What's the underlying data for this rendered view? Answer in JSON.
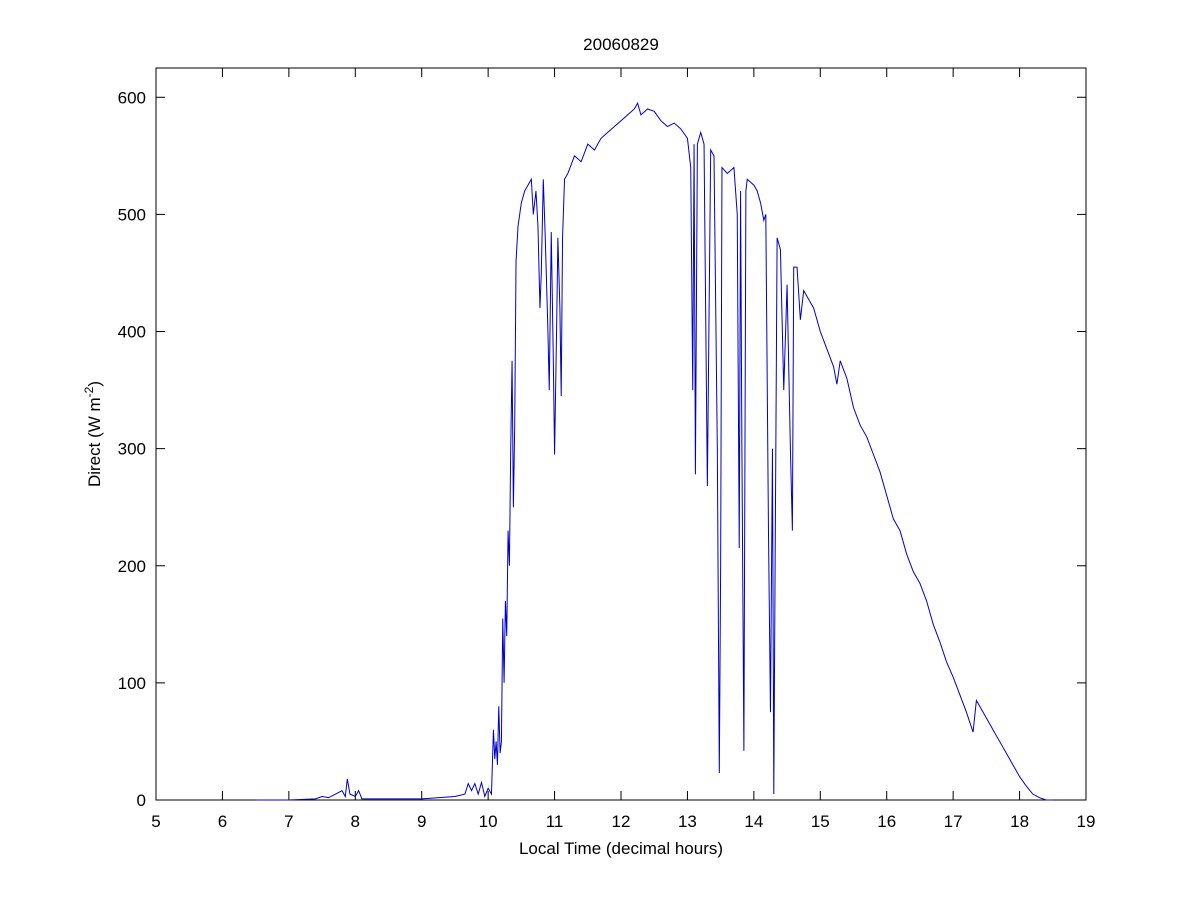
{
  "chart_data": {
    "type": "line",
    "title": "20060829",
    "xlabel": "Local Time (decimal hours)",
    "ylabel": [
      "Direct (W m",
      "-2",
      ")"
    ],
    "x": [
      6.5,
      7,
      7.4,
      7.5,
      7.6,
      7.7,
      7.8,
      7.85,
      7.88,
      7.92,
      8.0,
      8.05,
      8.1,
      8.5,
      9.0,
      9.5,
      9.65,
      9.7,
      9.75,
      9.8,
      9.85,
      9.9,
      9.95,
      10.0,
      10.05,
      10.08,
      10.1,
      10.12,
      10.14,
      10.16,
      10.18,
      10.2,
      10.22,
      10.24,
      10.26,
      10.28,
      10.3,
      10.32,
      10.34,
      10.36,
      10.38,
      10.4,
      10.42,
      10.45,
      10.5,
      10.55,
      10.6,
      10.65,
      10.68,
      10.72,
      10.75,
      10.78,
      10.8,
      10.83,
      10.86,
      10.9,
      10.92,
      10.95,
      10.98,
      11.0,
      11.03,
      11.05,
      11.08,
      11.1,
      11.12,
      11.15,
      11.2,
      11.3,
      11.4,
      11.5,
      11.6,
      11.7,
      11.8,
      11.9,
      12.0,
      12.1,
      12.2,
      12.25,
      12.3,
      12.4,
      12.5,
      12.6,
      12.7,
      12.8,
      12.9,
      13.0,
      13.05,
      13.08,
      13.1,
      13.12,
      13.15,
      13.2,
      13.25,
      13.3,
      13.35,
      13.4,
      13.45,
      13.48,
      13.5,
      13.52,
      13.6,
      13.7,
      13.75,
      13.78,
      13.8,
      13.82,
      13.85,
      13.88,
      13.9,
      14.0,
      14.05,
      14.1,
      14.15,
      14.18,
      14.22,
      14.25,
      14.28,
      14.3,
      14.32,
      14.35,
      14.4,
      14.45,
      14.5,
      14.55,
      14.58,
      14.6,
      14.65,
      14.7,
      14.75,
      14.8,
      14.9,
      15.0,
      15.1,
      15.2,
      15.25,
      15.3,
      15.4,
      15.5,
      15.6,
      15.7,
      15.8,
      15.9,
      16.0,
      16.1,
      16.2,
      16.3,
      16.4,
      16.5,
      16.6,
      16.7,
      16.8,
      16.9,
      17.0,
      17.1,
      17.2,
      17.3,
      17.35,
      17.4,
      17.5,
      17.6,
      17.7,
      17.8,
      17.9,
      18.0,
      18.1,
      18.2,
      18.3,
      18.4,
      18.5
    ],
    "series": [
      {
        "color": "#0000cc",
        "values": [
          0,
          0,
          1,
          3,
          2,
          5,
          8,
          3,
          18,
          5,
          3,
          8,
          1,
          1,
          1,
          3,
          5,
          14,
          8,
          14,
          5,
          15,
          3,
          10,
          5,
          60,
          35,
          50,
          30,
          80,
          40,
          50,
          155,
          100,
          170,
          140,
          230,
          200,
          300,
          375,
          250,
          320,
          460,
          490,
          510,
          520,
          525,
          530,
          500,
          520,
          490,
          420,
          450,
          530,
          480,
          400,
          350,
          485,
          380,
          295,
          400,
          480,
          420,
          345,
          480,
          530,
          535,
          550,
          545,
          560,
          555,
          565,
          570,
          575,
          580,
          585,
          590,
          595,
          585,
          590,
          588,
          580,
          575,
          578,
          573,
          565,
          540,
          350,
          560,
          278,
          560,
          570,
          560,
          268,
          555,
          550,
          300,
          23,
          200,
          540,
          535,
          540,
          500,
          215,
          520,
          300,
          42,
          520,
          530,
          525,
          520,
          510,
          495,
          500,
          230,
          75,
          300,
          5,
          200,
          480,
          470,
          350,
          440,
          300,
          230,
          455,
          455,
          410,
          435,
          430,
          420,
          400,
          385,
          370,
          355,
          375,
          360,
          335,
          320,
          310,
          295,
          280,
          260,
          240,
          230,
          210,
          195,
          185,
          170,
          150,
          135,
          118,
          105,
          90,
          75,
          58,
          85,
          80,
          70,
          60,
          50,
          40,
          30,
          20,
          12,
          5,
          2,
          0,
          0
        ]
      }
    ],
    "xlim": [
      5,
      19
    ],
    "xticks": [
      5,
      6,
      7,
      8,
      9,
      10,
      11,
      12,
      13,
      14,
      15,
      16,
      17,
      18,
      19
    ],
    "ylim": [
      0,
      625
    ],
    "yticks": [
      0,
      100,
      200,
      300,
      400,
      500,
      600
    ]
  }
}
